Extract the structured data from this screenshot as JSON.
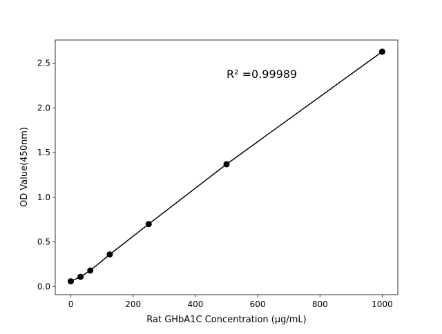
{
  "chart_data": {
    "type": "line",
    "title": "",
    "xlabel": "Rat GHbA1C Concentration (µg/mL)",
    "ylabel": "OD Value(450nm)",
    "x": [
      0,
      31.25,
      62.5,
      125,
      250,
      500,
      1000
    ],
    "y": [
      0.06,
      0.11,
      0.18,
      0.36,
      0.7,
      1.37,
      2.63
    ],
    "xlim": [
      -50,
      1050
    ],
    "ylim": [
      -0.09,
      2.76
    ],
    "xticks": [
      0,
      200,
      400,
      600,
      800,
      1000
    ],
    "xtick_labels": [
      "0",
      "200",
      "400",
      "600",
      "800",
      "1000"
    ],
    "yticks": [
      0.0,
      0.5,
      1.0,
      1.5,
      2.0,
      2.5
    ],
    "ytick_labels": [
      "0.0",
      "0.5",
      "1.0",
      "1.5",
      "2.0",
      "2.5"
    ],
    "annotation": "R² =0.99989",
    "annotation_at": [
      500,
      2.38
    ],
    "grid": false,
    "marker": "circle",
    "color": "#000000"
  }
}
